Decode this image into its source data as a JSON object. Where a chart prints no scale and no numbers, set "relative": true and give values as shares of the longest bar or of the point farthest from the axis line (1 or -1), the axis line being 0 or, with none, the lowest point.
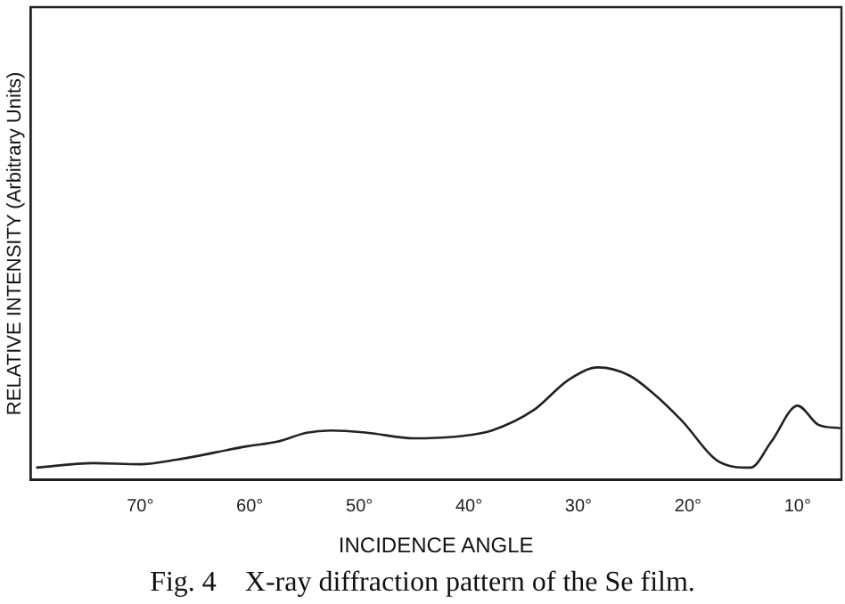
{
  "chart_data": {
    "type": "line",
    "title": "Fig. 4    X-ray diffraction pattern of the Se film.",
    "xlabel": "INCIDENCE ANGLE",
    "ylabel": "RELATIVE INTENSITY (Arbitrary Units)",
    "relative": true,
    "x": [
      79.5,
      74.3,
      70,
      66.7,
      60.2,
      57.5,
      54.8,
      52.6,
      49.3,
      45,
      40.7,
      37.9,
      34.1,
      30.9,
      28.2,
      25.4,
      23.3,
      20.5,
      17.3,
      14.3,
      12.4,
      10,
      8.1,
      6.1
    ],
    "series": [
      {
        "color": "#222222",
        "values": [
          0.11,
          0.15,
          0.14,
          0.18,
          0.3,
          0.34,
          0.42,
          0.44,
          0.42,
          0.37,
          0.39,
          0.44,
          0.62,
          0.89,
          1.0,
          0.93,
          0.78,
          0.52,
          0.17,
          0.11,
          0.34,
          0.66,
          0.49,
          0.46
        ]
      }
    ],
    "xlim": [
      80,
      6
    ],
    "xticks": [
      {
        "value": 70,
        "label": "70°"
      },
      {
        "value": 60,
        "label": "60°"
      },
      {
        "value": 50,
        "label": "50°"
      },
      {
        "value": 40,
        "label": "40°"
      },
      {
        "value": 30,
        "label": "30°"
      },
      {
        "value": 20,
        "label": "20°"
      },
      {
        "value": 10,
        "label": "10°"
      }
    ],
    "grid": false,
    "legend": false,
    "marker": "none",
    "line_style": "solid"
  }
}
